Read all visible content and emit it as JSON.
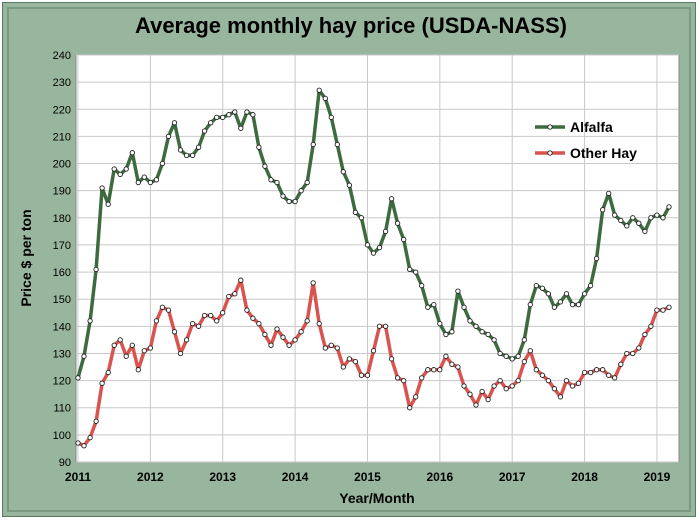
{
  "chart_data": {
    "type": "line",
    "title": "Average monthly hay price (USDA-NASS)",
    "xlabel": "Year/Month",
    "ylabel": "Price $ per ton",
    "ylim": [
      90,
      240
    ],
    "yticks": [
      90,
      100,
      110,
      120,
      130,
      140,
      150,
      160,
      170,
      180,
      190,
      200,
      210,
      220,
      230,
      240
    ],
    "xlim": [
      "2011-01",
      "2019-03"
    ],
    "xticks": [
      "2011",
      "2012",
      "2013",
      "2014",
      "2015",
      "2016",
      "2017",
      "2018",
      "2019"
    ],
    "grid": true,
    "legend": "right",
    "x": [
      "2011-01",
      "2011-02",
      "2011-03",
      "2011-04",
      "2011-05",
      "2011-06",
      "2011-07",
      "2011-08",
      "2011-09",
      "2011-10",
      "2011-11",
      "2011-12",
      "2012-01",
      "2012-02",
      "2012-03",
      "2012-04",
      "2012-05",
      "2012-06",
      "2012-07",
      "2012-08",
      "2012-09",
      "2012-10",
      "2012-11",
      "2012-12",
      "2013-01",
      "2013-02",
      "2013-03",
      "2013-04",
      "2013-05",
      "2013-06",
      "2013-07",
      "2013-08",
      "2013-09",
      "2013-10",
      "2013-11",
      "2013-12",
      "2014-01",
      "2014-02",
      "2014-03",
      "2014-04",
      "2014-05",
      "2014-06",
      "2014-07",
      "2014-08",
      "2014-09",
      "2014-10",
      "2014-11",
      "2014-12",
      "2015-01",
      "2015-02",
      "2015-03",
      "2015-04",
      "2015-05",
      "2015-06",
      "2015-07",
      "2015-08",
      "2015-09",
      "2015-10",
      "2015-11",
      "2015-12",
      "2016-01",
      "2016-02",
      "2016-03",
      "2016-04",
      "2016-05",
      "2016-06",
      "2016-07",
      "2016-08",
      "2016-09",
      "2016-10",
      "2016-11",
      "2016-12",
      "2017-01",
      "2017-02",
      "2017-03",
      "2017-04",
      "2017-05",
      "2017-06",
      "2017-07",
      "2017-08",
      "2017-09",
      "2017-10",
      "2017-11",
      "2017-12",
      "2018-01",
      "2018-02",
      "2018-03",
      "2018-04",
      "2018-05",
      "2018-06",
      "2018-07",
      "2018-08",
      "2018-09",
      "2018-10",
      "2018-11",
      "2018-12",
      "2019-01",
      "2019-02",
      "2019-03"
    ],
    "series": [
      {
        "name": "Alfalfa",
        "color": "#3d6b3f",
        "values": [
          121,
          129,
          142,
          161,
          191,
          185,
          198,
          196,
          198,
          204,
          193,
          195,
          193,
          194,
          200,
          210,
          215,
          205,
          203,
          203,
          206,
          212,
          215,
          217,
          217,
          218,
          219,
          213,
          219,
          218,
          206,
          199,
          194,
          193,
          188,
          186,
          186,
          190,
          193,
          207,
          227,
          224,
          217,
          207,
          197,
          192,
          182,
          180,
          170,
          167,
          169,
          175,
          187,
          178,
          172,
          161,
          160,
          155,
          147,
          148,
          141,
          137,
          138,
          153,
          147,
          142,
          140,
          138,
          137,
          135,
          130,
          129,
          128,
          129,
          135,
          148,
          155,
          154,
          152,
          147,
          149,
          152,
          148,
          148,
          152,
          155,
          165,
          183,
          189,
          181,
          179,
          177,
          180,
          178,
          175,
          180,
          181,
          180,
          184
        ]
      },
      {
        "name": "Other Hay",
        "color": "#d9534f",
        "values": [
          97,
          96,
          99,
          105,
          119,
          123,
          133,
          135,
          129,
          133,
          124,
          131,
          132,
          142,
          147,
          146,
          138,
          130,
          135,
          141,
          140,
          144,
          144,
          142,
          145,
          151,
          152,
          157,
          146,
          143,
          141,
          137,
          133,
          139,
          136,
          133,
          135,
          138,
          142,
          156,
          141,
          132,
          133,
          132,
          125,
          128,
          127,
          122,
          122,
          131,
          140,
          140,
          128,
          121,
          120,
          110,
          114,
          121,
          124,
          124,
          124,
          129,
          126,
          125,
          118,
          115,
          111,
          116,
          113,
          118,
          120,
          117,
          118,
          120,
          127,
          131,
          124,
          122,
          120,
          117,
          114,
          120,
          118,
          119,
          123,
          123,
          124,
          124,
          122,
          121,
          126,
          130,
          130,
          132,
          137,
          140,
          146,
          146,
          147
        ]
      }
    ]
  }
}
